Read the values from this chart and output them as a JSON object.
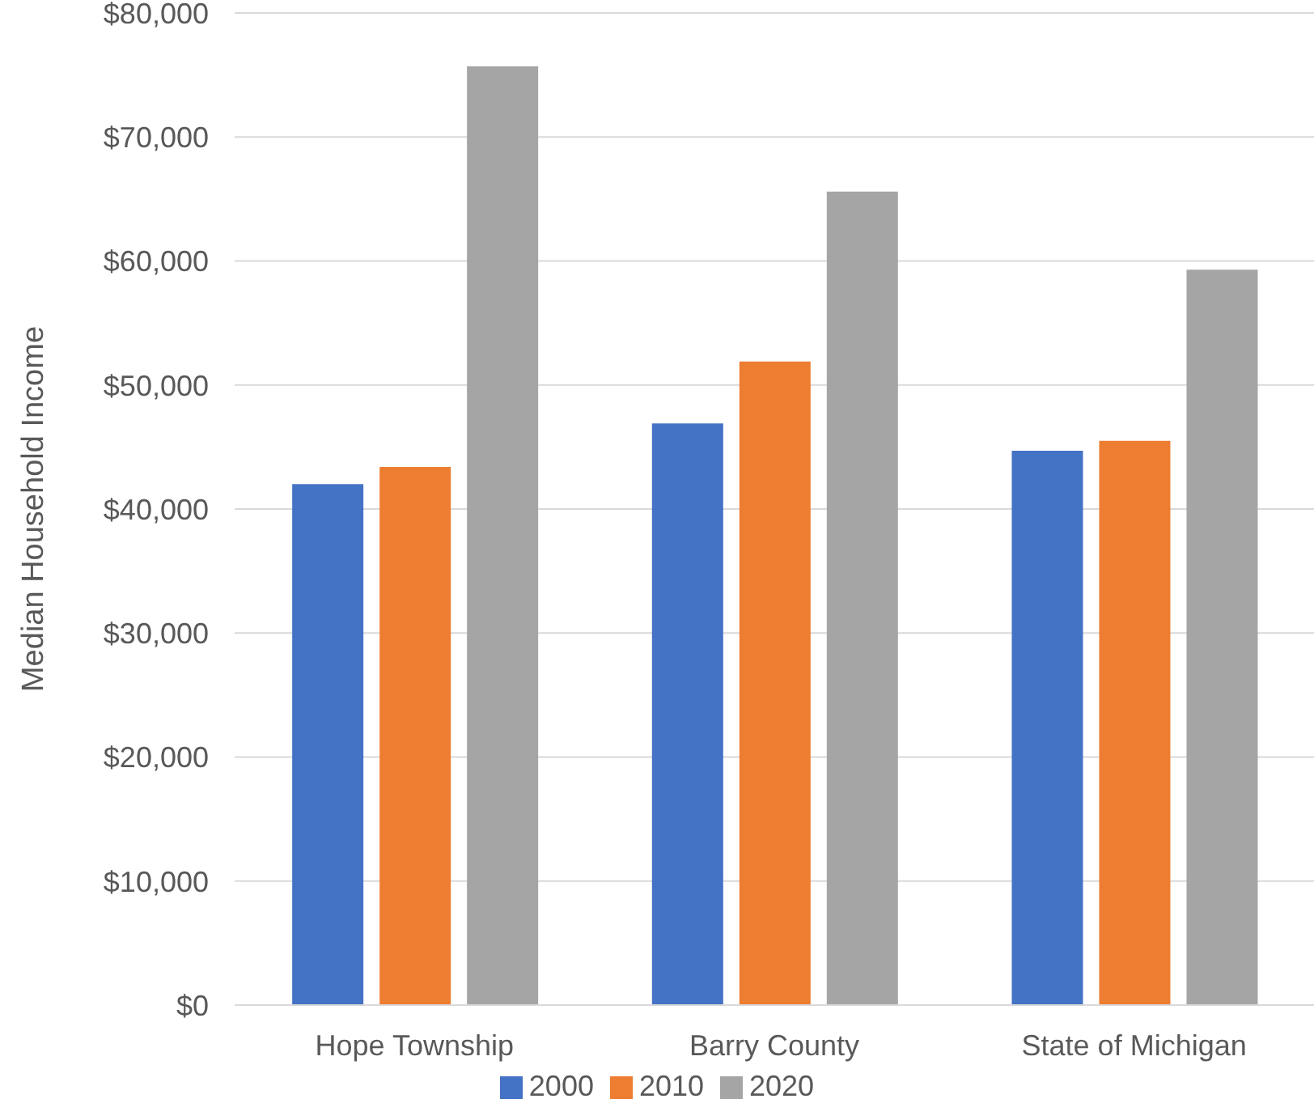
{
  "chart_data": {
    "type": "bar",
    "ylabel": "Median Household Income",
    "categories": [
      "Hope Township",
      "Barry County",
      "State of Michigan"
    ],
    "series": [
      {
        "name": "2000",
        "color": "#4472c4",
        "values": [
          42000,
          46900,
          44700
        ]
      },
      {
        "name": "2010",
        "color": "#ed7d31",
        "values": [
          43400,
          51900,
          45500
        ]
      },
      {
        "name": "2020",
        "color": "#a5a5a5",
        "values": [
          75700,
          65600,
          59300
        ]
      }
    ],
    "ylim": [
      0,
      80000
    ],
    "yticks": [
      {
        "value": 0,
        "label": "$0"
      },
      {
        "value": 10000,
        "label": "$10,000"
      },
      {
        "value": 20000,
        "label": "$20,000"
      },
      {
        "value": 30000,
        "label": "$30,000"
      },
      {
        "value": 40000,
        "label": "$40,000"
      },
      {
        "value": 50000,
        "label": "$50,000"
      },
      {
        "value": 60000,
        "label": "$60,000"
      },
      {
        "value": 70000,
        "label": "$70,000"
      },
      {
        "value": 80000,
        "label": "$80,000"
      }
    ],
    "grid": "y",
    "legend": "bottom"
  }
}
